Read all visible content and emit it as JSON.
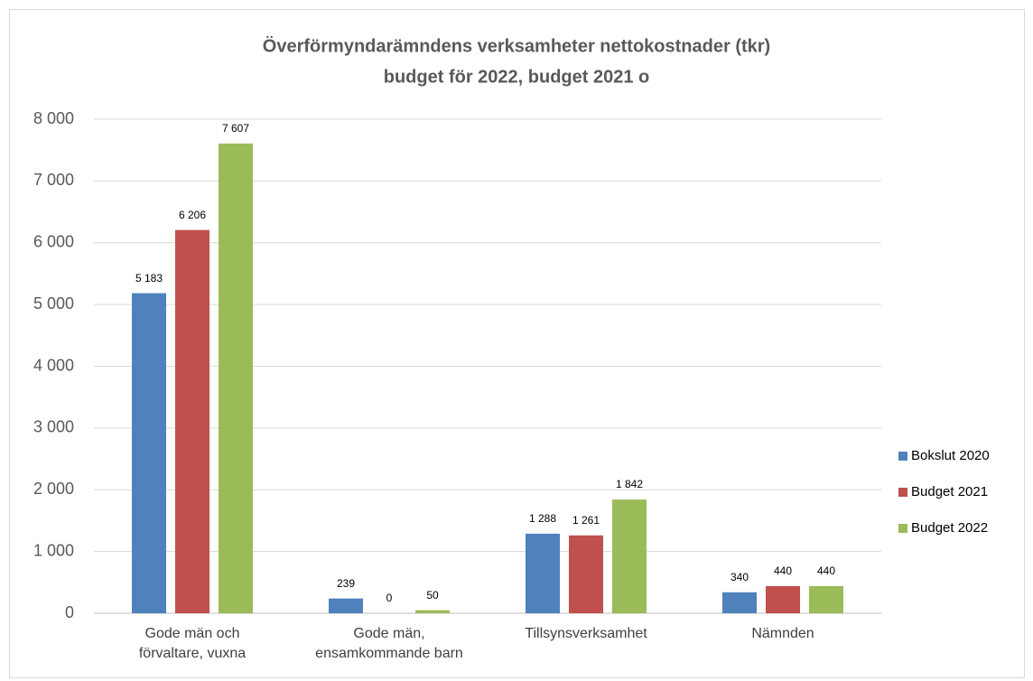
{
  "chart_data": {
    "type": "bar",
    "title": [
      "Överförmyndarämndens verksamheter nettokostnader (tkr)",
      "budget för 2022, budget 2021 o"
    ],
    "categories": [
      "Gode män och förvaltare, vuxna",
      "Gode män, ensamkommande barn",
      "Tillsynsverksamhet",
      "Nämnden"
    ],
    "series": [
      {
        "name": "Bokslut 2020",
        "color": "#4f81bd",
        "values": [
          5183,
          239,
          1288,
          340
        ],
        "value_labels": [
          "5 183",
          "239",
          "1 288",
          "340"
        ]
      },
      {
        "name": "Budget 2021",
        "color": "#c0504d",
        "values": [
          6206,
          0,
          1261,
          440
        ],
        "value_labels": [
          "6 206",
          "0",
          "1 261",
          "440"
        ]
      },
      {
        "name": "Budget 2022",
        "color": "#9bbb59",
        "values": [
          7607,
          50,
          1842,
          440
        ],
        "value_labels": [
          "7 607",
          "50",
          "1 842",
          "440"
        ]
      }
    ],
    "ylim": [
      0,
      8000
    ],
    "yticks": [
      0,
      {
        "value": 1000,
        "label": "1 000"
      },
      {
        "value": 2000,
        "label": "2 000"
      },
      {
        "value": 3000,
        "label": "3 000"
      },
      {
        "value": 4000,
        "label": "4 000"
      },
      {
        "value": 5000,
        "label": "5 000"
      },
      {
        "value": 6000,
        "label": "6 000"
      },
      {
        "value": 7000,
        "label": "7 000"
      },
      {
        "value": 8000,
        "label": "8 000"
      }
    ],
    "grid": true,
    "legend": "right"
  }
}
